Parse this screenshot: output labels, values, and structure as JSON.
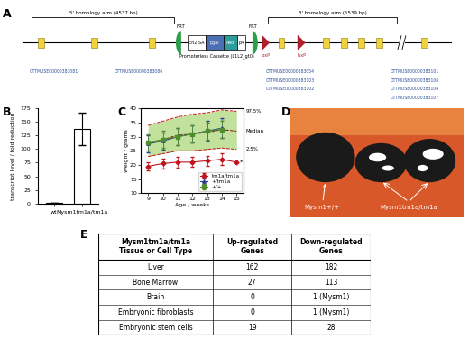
{
  "panel_labels": [
    "A",
    "B",
    "C",
    "D",
    "E"
  ],
  "diagram": {
    "five_prime_arm": "5' homology arm (4537 bp)",
    "three_prime_arm": "3' homology arm (5539 bp)",
    "frt": "FRT",
    "loxp": "loxP",
    "cassette_elements": [
      "En2 SA",
      "βgal",
      "neo",
      "pA"
    ],
    "cassette_label": "Promoterless Cassette (L1L2_gt0)",
    "exon_labels": [
      [
        "OTTMUSE00000383081"
      ],
      [
        "OTTMUSE00000383086"
      ],
      [
        "OTTMUSE00000383054",
        "OTTMUSE00000383103",
        "OTTMUSE00000383102"
      ],
      [
        "OTTMUSE00000383101",
        "OTTMUSE00000383106",
        "OTTMUSE00000383104",
        "OTTMUSE00000383107"
      ]
    ]
  },
  "chart_data": [
    {
      "type": "bar",
      "categories": [
        "wt",
        "Mysm1tm1a/tm1a"
      ],
      "values": [
        1,
        138
      ],
      "errors": [
        0,
        30
      ],
      "color": "#ffffff",
      "y_label": "transcript level / fold reduction",
      "ylim": [
        0,
        175
      ],
      "yticks": [
        0,
        25,
        50,
        75,
        100,
        125,
        150,
        175
      ]
    },
    {
      "type": "line",
      "x": [
        9,
        10,
        11,
        12,
        13,
        14,
        15
      ],
      "x_label": "Age / weeks",
      "y_label": "Weight / grams",
      "xlim": [
        8.5,
        15.5
      ],
      "xticks": [
        9,
        10,
        11,
        12,
        13,
        14,
        15
      ],
      "ylim": [
        10,
        40
      ],
      "yticks": [
        10,
        15,
        20,
        25,
        30,
        35,
        40
      ],
      "legend": "lower right",
      "series": [
        {
          "name": "tm1a/tm1a",
          "color": "#c0141c",
          "marker": "diamond",
          "values": [
            19.5,
            20.5,
            21,
            21,
            21.5,
            22,
            21
          ],
          "errors": [
            1.5,
            1.8,
            2,
            1.8,
            1.8,
            2,
            null
          ]
        },
        {
          "name": "+/tm1a",
          "color": "#2b3a8f",
          "marker": "triangle",
          "values": [
            27.5,
            28.5,
            30,
            31,
            32,
            33,
            null
          ],
          "errors": [
            3,
            3,
            3,
            3,
            3.5,
            3.5,
            null
          ]
        },
        {
          "name": "+/+",
          "color": "#4f8f2a",
          "marker": "square",
          "values": [
            28,
            29,
            30,
            31,
            32,
            32.5,
            null
          ],
          "errors": [
            3,
            3,
            3,
            3,
            3,
            3,
            null
          ]
        }
      ],
      "reference_lines": [
        {
          "name": "97.5%",
          "color": "#c0141c",
          "line_style": "dashed",
          "values": [
            34,
            35.5,
            37,
            38,
            38.5,
            39.5,
            39
          ]
        },
        {
          "name": "Median",
          "color": "#7a1010",
          "line_style": "dashed",
          "values": [
            27.5,
            29,
            30.5,
            31,
            31.5,
            32.5,
            32
          ]
        },
        {
          "name": "2.5%",
          "color": "#c0141c",
          "line_style": "dashed",
          "values": [
            23,
            24,
            25,
            25,
            25.5,
            26,
            25.5
          ]
        }
      ],
      "annotations": [
        {
          "text": "*",
          "x": 15.25,
          "y": 21
        }
      ]
    }
  ],
  "photo": {
    "labels": [
      "Mysm1+/+",
      "Mysm1tm1a/tm1a"
    ]
  },
  "table": {
    "header": [
      "Mysm1tm1a/tm1a\nTissue or Cell Type",
      "Up-regulated\nGenes",
      "Down-regulated\nGenes"
    ],
    "rows": [
      [
        "Liver",
        162,
        182
      ],
      [
        "Bone Marrow",
        27,
        113
      ],
      [
        "Brain",
        0,
        "1 (Mysm1)"
      ],
      [
        "Embryonic fibroblasts",
        0,
        "1 (Mysm1)"
      ],
      [
        "Embryonic stem cells",
        19,
        28
      ]
    ]
  }
}
